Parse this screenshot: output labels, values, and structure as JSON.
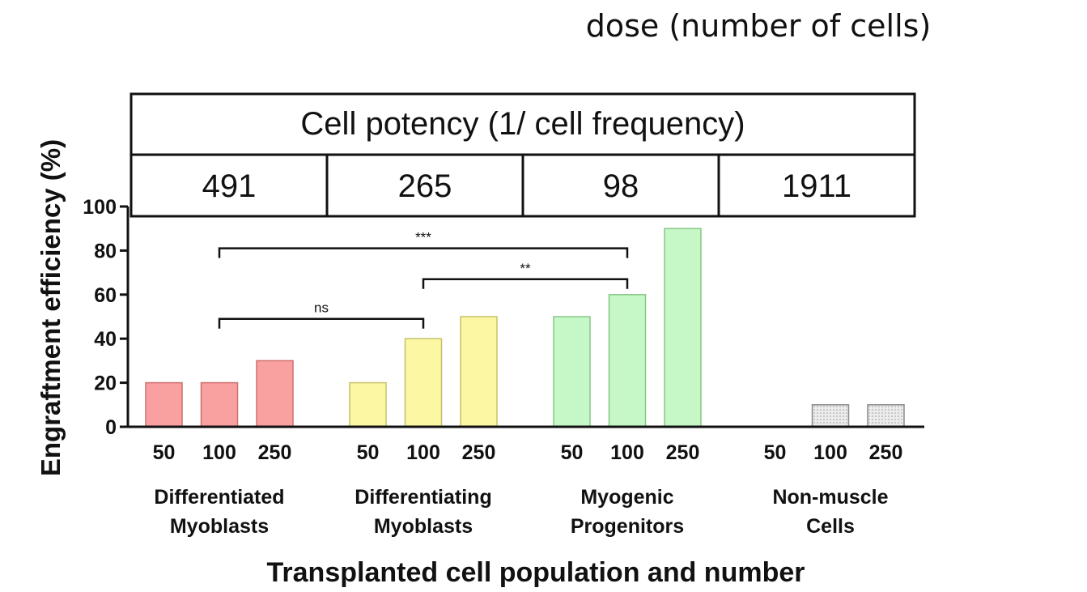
{
  "dose_title": "dose (number of cells)",
  "potency_table": {
    "header": "Cell potency (1/ cell frequency)",
    "values": [
      "491",
      "265",
      "98",
      "1911"
    ]
  },
  "colors": {
    "group_fills": [
      "#f9a0a0",
      "#fbf7a3",
      "#c6f7c6",
      "#e6e6e6"
    ],
    "group_strokes": [
      "#cf6f6f",
      "#c7c06a",
      "#86c786",
      "#8a8a8a"
    ],
    "axis": "#111111"
  },
  "chart_data": {
    "type": "bar",
    "ylabel": "Engraftment efficiency (%)",
    "xlabel": "Transplanted cell population and number",
    "ylim": [
      0,
      100
    ],
    "yticks": [
      0,
      20,
      40,
      60,
      80,
      100
    ],
    "groups": [
      {
        "name_lines": [
          "Differentiated",
          "Myoblasts"
        ],
        "categories": [
          "50",
          "100",
          "250"
        ],
        "values": [
          20,
          20,
          30
        ]
      },
      {
        "name_lines": [
          "Differentiating",
          "Myoblasts"
        ],
        "categories": [
          "50",
          "100",
          "250"
        ],
        "values": [
          20,
          40,
          50
        ]
      },
      {
        "name_lines": [
          "Myogenic",
          "Progenitors"
        ],
        "categories": [
          "50",
          "100",
          "250"
        ],
        "values": [
          50,
          60,
          90
        ]
      },
      {
        "name_lines": [
          "Non-muscle",
          "Cells"
        ],
        "categories": [
          "50",
          "100",
          "250"
        ],
        "values": [
          0,
          10,
          10
        ]
      }
    ],
    "significance": [
      {
        "label": "***",
        "from": [
          0,
          1
        ],
        "to": [
          2,
          1
        ],
        "level": 81
      },
      {
        "label": "**",
        "from": [
          1,
          1
        ],
        "to": [
          2,
          1
        ],
        "level": 67
      },
      {
        "label": "ns",
        "from": [
          0,
          1
        ],
        "to": [
          1,
          1
        ],
        "level": 49
      }
    ]
  }
}
